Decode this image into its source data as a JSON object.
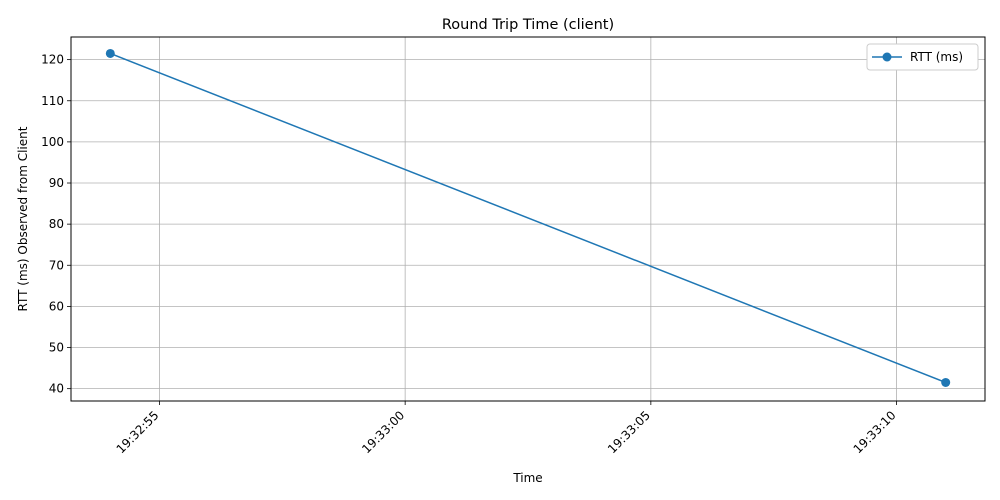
{
  "chart_data": {
    "type": "line",
    "title": "Round Trip Time (client)",
    "xlabel": "Time",
    "ylabel": "RTT (ms) Observed from Client",
    "x_ticks": [
      "19:32:55",
      "19:33:00",
      "19:33:05",
      "19:33:10"
    ],
    "y_ticks": [
      40,
      50,
      60,
      70,
      80,
      90,
      100,
      110,
      120
    ],
    "ylim": [
      37,
      125.5
    ],
    "xlim": [
      "19:32:53.2",
      "19:33:11.8"
    ],
    "grid": true,
    "legend_position": "top-right",
    "series": [
      {
        "name": "RTT (ms)",
        "color": "#1f77b4",
        "marker": "circle",
        "points": [
          {
            "x": "19:32:54",
            "y": 121.5
          },
          {
            "x": "19:33:11",
            "y": 41.5
          }
        ]
      }
    ]
  }
}
